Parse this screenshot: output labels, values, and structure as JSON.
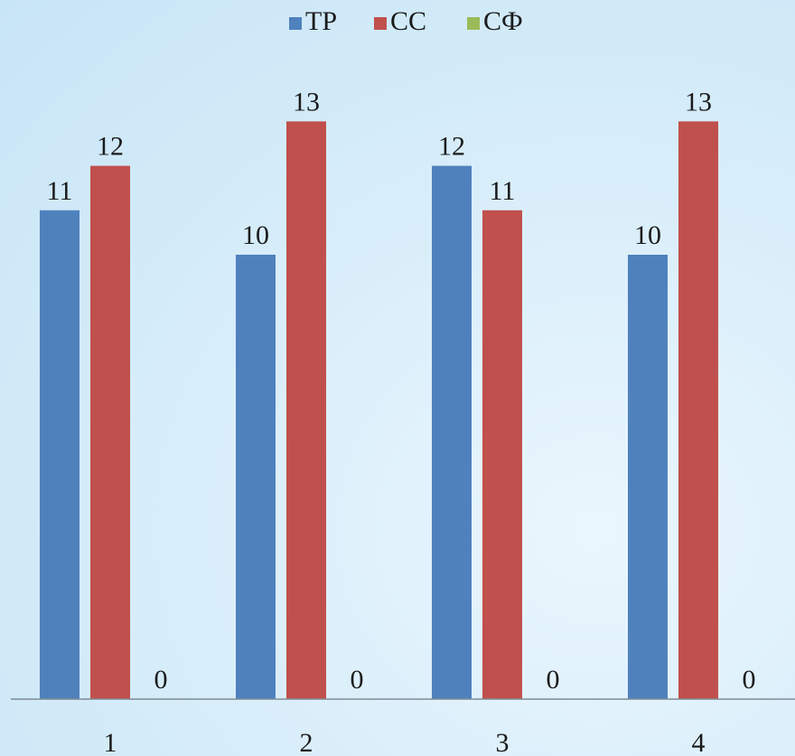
{
  "chart_data": {
    "type": "bar",
    "categories": [
      "1",
      "2",
      "3",
      "4"
    ],
    "series": [
      {
        "name": "ТР",
        "values": [
          11,
          10,
          12,
          10
        ],
        "color": "#4f81bd"
      },
      {
        "name": "СС",
        "values": [
          12,
          13,
          11,
          13
        ],
        "color": "#c0504d"
      },
      {
        "name": "СФ",
        "values": [
          0,
          0,
          0,
          0
        ],
        "color": "#9bbb59"
      }
    ],
    "title": "",
    "xlabel": "",
    "ylabel": "",
    "ylim": [
      0,
      13
    ],
    "legend_position": "top",
    "grid": false,
    "data_labels": true
  }
}
